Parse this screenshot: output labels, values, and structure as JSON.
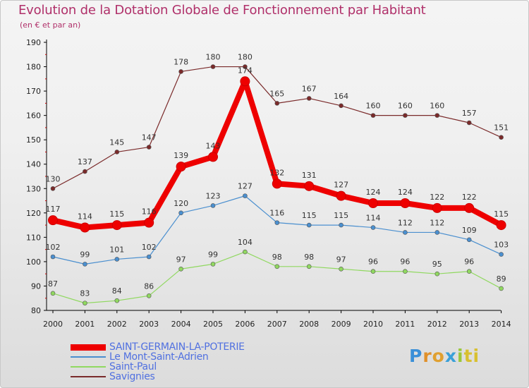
{
  "header": {
    "title": "Evolution de la Dotation Globale de Fonctionnement par Habitant",
    "subtitle": "(en € et par an)"
  },
  "logo": {
    "letters": [
      "P",
      "r",
      "o",
      "x",
      "i",
      "ti"
    ]
  },
  "chart_data": {
    "type": "line",
    "categories": [
      "2000",
      "2001",
      "2002",
      "2003",
      "2004",
      "2005",
      "2006",
      "2007",
      "2008",
      "2009",
      "2010",
      "2011",
      "2012",
      "2013",
      "2014"
    ],
    "ylim": [
      80,
      190
    ],
    "yticks": [
      80,
      90,
      100,
      110,
      120,
      130,
      140,
      150,
      160,
      170,
      180,
      190
    ],
    "grid": false,
    "legend_position": "bottom-left",
    "series": [
      {
        "name": "SAINT-GERMAIN-LA-POTERIE",
        "color": "#ee0000",
        "emphasis": true,
        "values": [
          117,
          114,
          115,
          116,
          139,
          143,
          174,
          132,
          131,
          127,
          124,
          124,
          122,
          122,
          115
        ],
        "labels": [
          "117",
          "114",
          "115",
          "116",
          "139",
          "143",
          "174",
          "132",
          "131",
          "127",
          "124",
          "124",
          "122",
          "122",
          "115"
        ]
      },
      {
        "name": "Le Mont-Saint-Adrien",
        "color": "#4a8fcf",
        "emphasis": false,
        "values": [
          102,
          99,
          101,
          102,
          120,
          123,
          127,
          116,
          115,
          115,
          114,
          112,
          112,
          109,
          103
        ],
        "labels": [
          "102",
          "99",
          "101",
          "102",
          "120",
          "123",
          "127",
          "116",
          "115",
          "115",
          "114",
          "112",
          "112",
          "109",
          "103"
        ]
      },
      {
        "name": "Saint-Paul",
        "color": "#90d860",
        "emphasis": false,
        "values": [
          87,
          83,
          84,
          86,
          97,
          99,
          104,
          98,
          98,
          97,
          96,
          96,
          95,
          96,
          89
        ],
        "labels": [
          "87",
          "83",
          "84",
          "86",
          "97",
          "99",
          "104",
          "98",
          "98",
          "97",
          "96",
          "96",
          "95",
          "96",
          "89"
        ]
      },
      {
        "name": "Savignies",
        "color": "#7a2a2a",
        "emphasis": false,
        "values": [
          130,
          137,
          145,
          147,
          178,
          180,
          180,
          165,
          167,
          164,
          160,
          160,
          160,
          157,
          151
        ],
        "labels": [
          "130",
          "137",
          "145",
          "147",
          "178",
          "180",
          "180",
          "165",
          "167",
          "164",
          "160",
          "160",
          "160",
          "157",
          "151"
        ]
      }
    ]
  }
}
